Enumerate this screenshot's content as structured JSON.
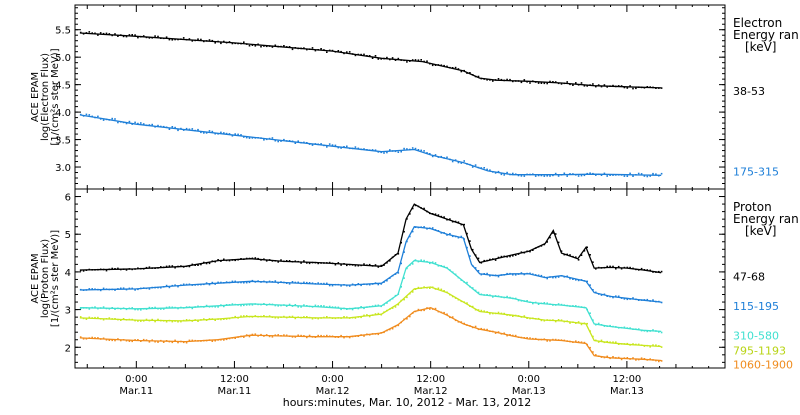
{
  "figure": {
    "xlabel": "hours:minutes, Mar. 10, 2012 - Mar. 13, 2012",
    "x_ticks": [
      {
        "t": 0.0,
        "time": "0:00",
        "date": "Mar.11"
      },
      {
        "t": 12.0,
        "time": "12:00",
        "date": "Mar.11"
      },
      {
        "t": 24.0,
        "time": "0:00",
        "date": "Mar.12"
      },
      {
        "t": 36.0,
        "time": "12:00",
        "date": "Mar.12"
      },
      {
        "t": 48.0,
        "time": "0:00",
        "date": "Mar.13"
      },
      {
        "t": 60.0,
        "time": "12:00",
        "date": "Mar.13"
      }
    ]
  },
  "chart_data": [
    {
      "type": "line",
      "panel": "electron",
      "ylabel_lines": [
        "ACE EPAM",
        "log(Electron Flux)",
        "[1/(cm²s ster MeV)]"
      ],
      "legend_title_lines": [
        "Electron",
        "Energy ran",
        "[keV]"
      ],
      "ylim": [
        2.6,
        5.95
      ],
      "yticks": [
        3.0,
        3.5,
        4.0,
        4.5,
        5.0,
        5.5
      ],
      "ytick_labels": [
        "3.0",
        "3.5",
        "4.0",
        "4.5",
        "5.0",
        "5.5"
      ],
      "x_unit": "hours since 0:00 Mar. 11, 2012",
      "xlim": [
        -7.5,
        72
      ],
      "data_xlim": [
        -6.9,
        64.2
      ],
      "series": [
        {
          "name": "38-53",
          "color": "#000000",
          "x": [
            -6.9,
            0,
            12,
            24,
            30,
            35,
            40,
            42,
            44,
            48,
            52,
            56,
            60,
            64.2
          ],
          "y": [
            5.44,
            5.38,
            5.26,
            5.11,
            4.98,
            4.92,
            4.75,
            4.62,
            4.58,
            4.56,
            4.53,
            4.48,
            4.46,
            4.44
          ]
        },
        {
          "name": "175-315",
          "color": "#1e7fd8",
          "x": [
            -6.9,
            0,
            12,
            24,
            30,
            34,
            36,
            40,
            43,
            46,
            52,
            56,
            60,
            64.2
          ],
          "y": [
            3.95,
            3.78,
            3.58,
            3.38,
            3.28,
            3.32,
            3.22,
            3.08,
            2.93,
            2.86,
            2.86,
            2.87,
            2.86,
            2.85
          ]
        }
      ]
    },
    {
      "type": "line",
      "panel": "proton",
      "ylabel_lines": [
        "ACE EPAM",
        "log(Proton Flux)",
        "[1/(cm²s ster MeV)]"
      ],
      "legend_title_lines": [
        "Proton",
        "Energy ran",
        "[keV]"
      ],
      "ylim": [
        1.45,
        6.2
      ],
      "yticks": [
        2,
        3,
        4,
        5,
        6
      ],
      "ytick_labels": [
        "2",
        "3",
        "4",
        "5",
        "6"
      ],
      "x_unit": "hours since 0:00 Mar. 11, 2012",
      "xlim": [
        -7.5,
        72
      ],
      "data_xlim": [
        -6.9,
        64.2
      ],
      "series": [
        {
          "name": "47-68",
          "color": "#000000",
          "x": [
            -6.9,
            0,
            6,
            10,
            14,
            18,
            22,
            26,
            30,
            32,
            33,
            34,
            36,
            38,
            40,
            41,
            42,
            44,
            46,
            48,
            50,
            51,
            52,
            54,
            55,
            56,
            58,
            60,
            62,
            64.2
          ],
          "y": [
            4.05,
            4.08,
            4.15,
            4.3,
            4.35,
            4.28,
            4.25,
            4.2,
            4.15,
            4.5,
            5.4,
            5.8,
            5.55,
            5.4,
            5.25,
            4.6,
            4.25,
            4.35,
            4.45,
            4.55,
            4.75,
            5.1,
            4.5,
            4.35,
            4.65,
            4.1,
            4.12,
            4.1,
            4.05,
            3.98
          ]
        },
        {
          "name": "115-195",
          "color": "#1e7fd8",
          "x": [
            -6.9,
            0,
            6,
            10,
            14,
            18,
            22,
            26,
            30,
            32,
            33,
            34,
            36,
            38,
            40,
            41,
            42,
            44,
            46,
            48,
            50,
            52,
            55,
            56,
            58,
            60,
            62,
            64.2
          ],
          "y": [
            3.52,
            3.55,
            3.65,
            3.7,
            3.75,
            3.72,
            3.68,
            3.65,
            3.7,
            4.0,
            4.8,
            5.2,
            5.15,
            5.0,
            4.9,
            4.2,
            3.95,
            3.9,
            3.95,
            3.95,
            3.85,
            3.9,
            3.75,
            3.45,
            3.35,
            3.3,
            3.25,
            3.2
          ]
        },
        {
          "name": "310-580",
          "color": "#40e0d0",
          "x": [
            -6.9,
            0,
            6,
            10,
            14,
            18,
            22,
            26,
            30,
            32,
            33,
            34,
            36,
            38,
            40,
            42,
            44,
            46,
            48,
            50,
            52,
            55,
            56,
            58,
            60,
            62,
            64.2
          ],
          "y": [
            3.05,
            3.02,
            3.05,
            3.1,
            3.15,
            3.12,
            3.08,
            3.02,
            3.1,
            3.4,
            4.1,
            4.3,
            4.25,
            4.1,
            3.75,
            3.4,
            3.35,
            3.3,
            3.2,
            3.15,
            3.12,
            3.05,
            2.62,
            2.55,
            2.5,
            2.45,
            2.42
          ]
        },
        {
          "name": "795-1193",
          "color": "#c8e61e",
          "x": [
            -6.9,
            0,
            6,
            10,
            14,
            18,
            22,
            26,
            30,
            32,
            34,
            36,
            38,
            40,
            42,
            44,
            46,
            48,
            50,
            52,
            55,
            56,
            58,
            60,
            62,
            64.2
          ],
          "y": [
            2.78,
            2.72,
            2.7,
            2.75,
            2.82,
            2.8,
            2.78,
            2.78,
            2.88,
            3.15,
            3.55,
            3.6,
            3.45,
            3.2,
            2.95,
            2.9,
            2.85,
            2.78,
            2.72,
            2.7,
            2.62,
            2.18,
            2.12,
            2.08,
            2.05,
            2.02
          ]
        },
        {
          "name": "1060-1900",
          "color": "#f08c1e",
          "x": [
            -6.9,
            0,
            6,
            10,
            14,
            18,
            22,
            26,
            30,
            32,
            34,
            36,
            38,
            40,
            42,
            44,
            46,
            48,
            50,
            52,
            55,
            56,
            58,
            60,
            62,
            64.2
          ],
          "y": [
            2.25,
            2.18,
            2.15,
            2.2,
            2.32,
            2.3,
            2.28,
            2.28,
            2.38,
            2.6,
            2.95,
            3.05,
            2.85,
            2.62,
            2.48,
            2.4,
            2.3,
            2.22,
            2.2,
            2.18,
            2.1,
            1.78,
            1.72,
            1.7,
            1.68,
            1.65
          ]
        }
      ]
    }
  ]
}
